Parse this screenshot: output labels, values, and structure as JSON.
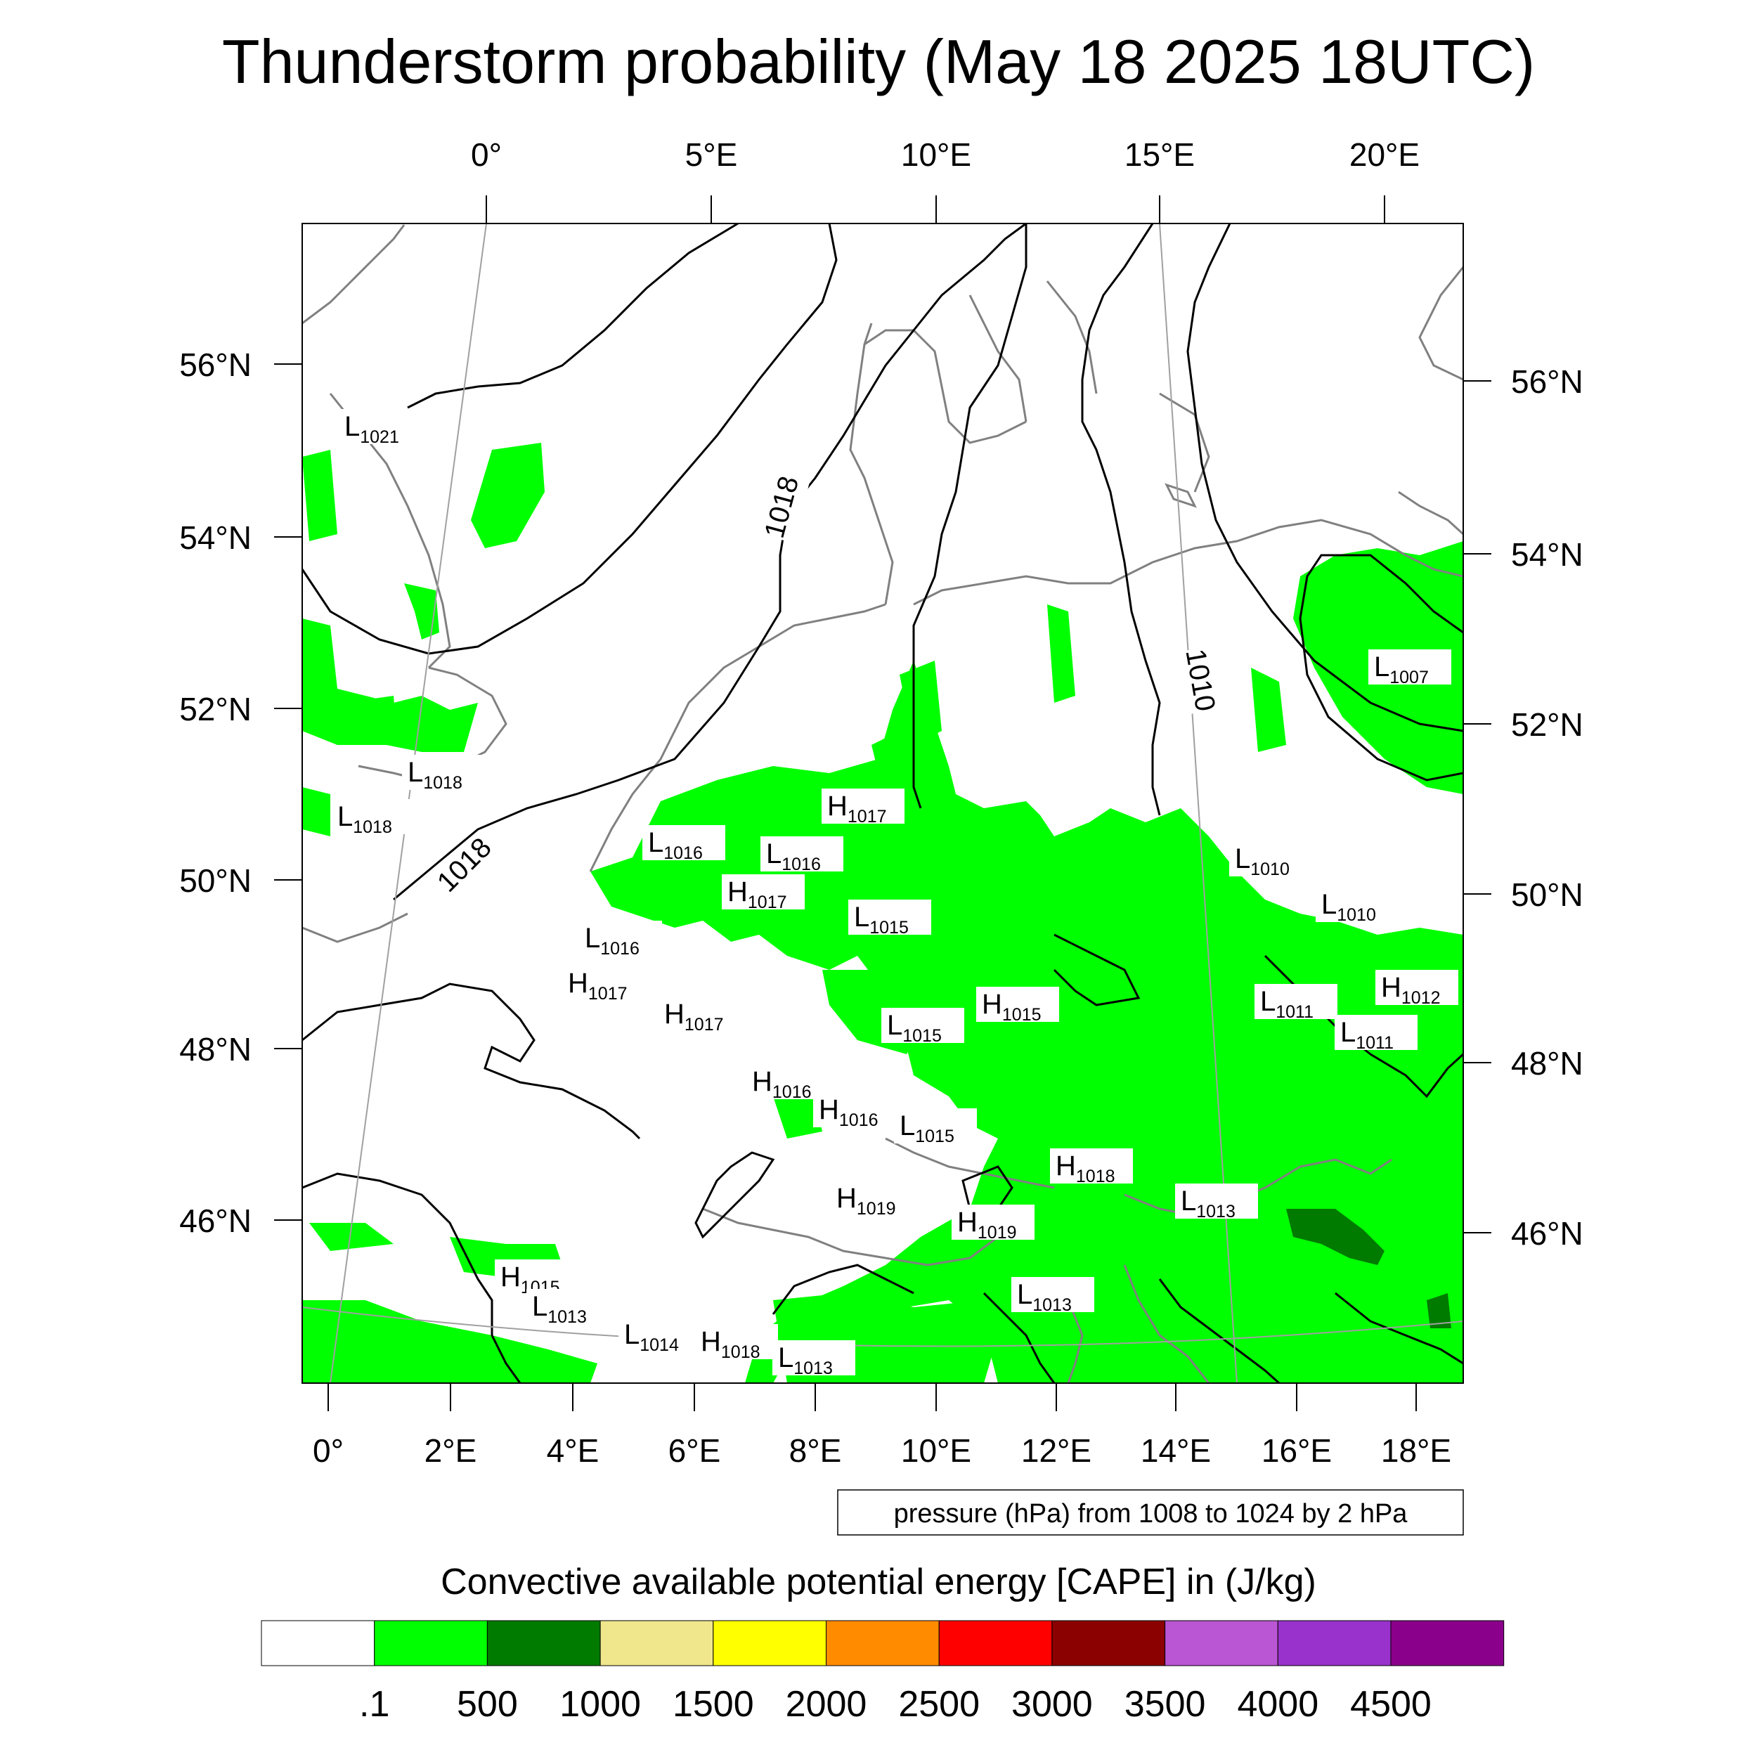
{
  "title": "Thunderstorm probability (May 18 2025 18UTC)",
  "top_lon_labels": [
    "0°",
    "5°E",
    "10°E",
    "15°E",
    "20°E"
  ],
  "bottom_lon_labels": [
    "0°",
    "2°E",
    "4°E",
    "6°E",
    "8°E",
    "10°E",
    "12°E",
    "14°E",
    "16°E",
    "18°E"
  ],
  "left_lat_labels": [
    "56°N",
    "54°N",
    "52°N",
    "50°N",
    "48°N",
    "46°N"
  ],
  "right_lat_labels": [
    "56°N",
    "54°N",
    "52°N",
    "50°N",
    "48°N",
    "46°N"
  ],
  "contour_note": "pressure (hPa) from 1008 to 1024 by 2 hPa",
  "contour_labels": [
    "1018",
    "1018",
    "1010"
  ],
  "pressure_centers": [
    {
      "letter": "L",
      "value": "1021"
    },
    {
      "letter": "L",
      "value": "1018"
    },
    {
      "letter": "L",
      "value": "1018"
    },
    {
      "letter": "L",
      "value": "1016"
    },
    {
      "letter": "L",
      "value": "1016"
    },
    {
      "letter": "H",
      "value": "1017"
    },
    {
      "letter": "H",
      "value": "1017"
    },
    {
      "letter": "L",
      "value": "1015"
    },
    {
      "letter": "L",
      "value": "1016"
    },
    {
      "letter": "H",
      "value": "1017"
    },
    {
      "letter": "H",
      "value": "1017"
    },
    {
      "letter": "L",
      "value": "1015"
    },
    {
      "letter": "H",
      "value": "1015"
    },
    {
      "letter": "H",
      "value": "1016"
    },
    {
      "letter": "H",
      "value": "1016"
    },
    {
      "letter": "L",
      "value": "1015"
    },
    {
      "letter": "H",
      "value": "1018"
    },
    {
      "letter": "H",
      "value": "1019"
    },
    {
      "letter": "H",
      "value": "1019"
    },
    {
      "letter": "L",
      "value": "1013"
    },
    {
      "letter": "L",
      "value": "1010"
    },
    {
      "letter": "L",
      "value": "1010"
    },
    {
      "letter": "L",
      "value": "1011"
    },
    {
      "letter": "L",
      "value": "1011"
    },
    {
      "letter": "H",
      "value": "1012"
    },
    {
      "letter": "L",
      "value": "1007"
    },
    {
      "letter": "H",
      "value": "1015"
    },
    {
      "letter": "L",
      "value": "1013"
    },
    {
      "letter": "L",
      "value": "1014"
    },
    {
      "letter": "H",
      "value": "1018"
    },
    {
      "letter": "L",
      "value": "1013"
    },
    {
      "letter": "L",
      "value": "1013"
    }
  ],
  "colorbar": {
    "title": "Convective available potential energy [CAPE] in (J/kg)",
    "labels": [
      ".1",
      "500",
      "1000",
      "1500",
      "2000",
      "2500",
      "3000",
      "3500",
      "4000",
      "4500"
    ],
    "colors": [
      "#ffffff",
      "#00ff00",
      "#007b00",
      "#f0e68c",
      "#ffff00",
      "#ff8c00",
      "#ff0000",
      "#8b0000",
      "#ba55d3",
      "#9932cc",
      "#8b008b"
    ]
  },
  "colors": {
    "cape_low": "#00ff00",
    "cape_mid": "#007b00",
    "coastline": "#808080",
    "isobar": "#000000"
  }
}
